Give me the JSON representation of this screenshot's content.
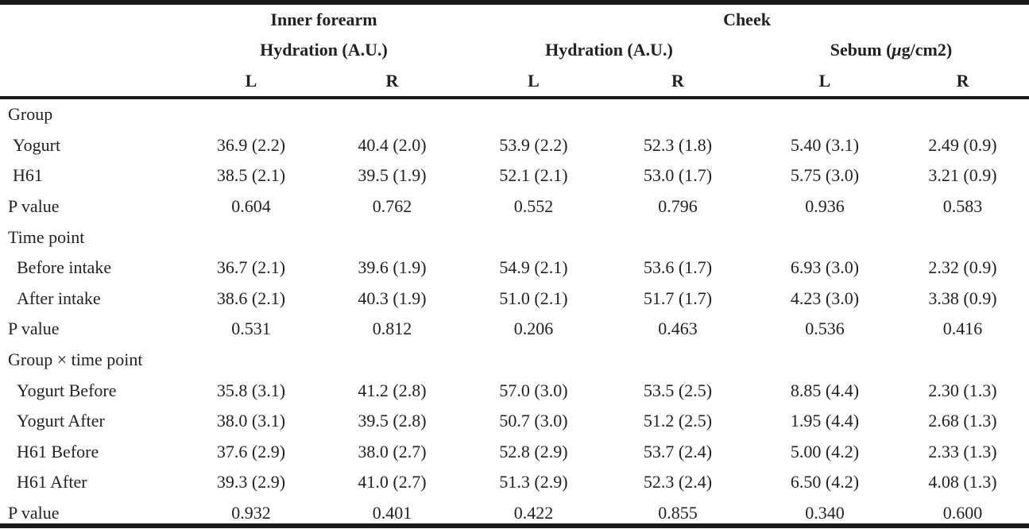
{
  "header": {
    "region1": "Inner forearm",
    "region2": "Cheek",
    "measure1": "Hydration (A.U.)",
    "measure2": "Hydration (A.U.)",
    "measure3_pre": "Sebum (",
    "measure3_mu": "μ",
    "measure3_post": "g/cm2)",
    "sides": [
      "L",
      "R",
      "L",
      "R",
      "L",
      "R"
    ]
  },
  "rows": [
    {
      "label": "Group",
      "indent": 0,
      "values": [
        "",
        "",
        "",
        "",
        "",
        ""
      ]
    },
    {
      "label": "Yogurt",
      "indent": 1,
      "values": [
        "36.9 (2.2)",
        "40.4 (2.0)",
        "53.9 (2.2)",
        "52.3 (1.8)",
        "5.40 (3.1)",
        "2.49 (0.9)"
      ]
    },
    {
      "label": "H61",
      "indent": 1,
      "values": [
        "38.5 (2.1)",
        "39.5 (1.9)",
        "52.1 (2.1)",
        "53.0 (1.7)",
        "5.75 (3.0)",
        "3.21 (0.9)"
      ]
    },
    {
      "label": "P value",
      "indent": 0,
      "values": [
        "0.604",
        "0.762",
        "0.552",
        "0.796",
        "0.936",
        "0.583"
      ]
    },
    {
      "label": "Time point",
      "indent": 0,
      "values": [
        "",
        "",
        "",
        "",
        "",
        ""
      ]
    },
    {
      "label": "Before intake",
      "indent": 2,
      "values": [
        "36.7 (2.1)",
        "39.6 (1.9)",
        "54.9 (2.1)",
        "53.6 (1.7)",
        "6.93 (3.0)",
        "2.32 (0.9)"
      ]
    },
    {
      "label": "After intake",
      "indent": 2,
      "values": [
        "38.6 (2.1)",
        "40.3 (1.9)",
        "51.0 (2.1)",
        "51.7 (1.7)",
        "4.23 (3.0)",
        "3.38 (0.9)"
      ]
    },
    {
      "label": "P value",
      "indent": 0,
      "values": [
        "0.531",
        "0.812",
        "0.206",
        "0.463",
        "0.536",
        "0.416"
      ]
    },
    {
      "label": "Group × time point",
      "indent": 0,
      "values": [
        "",
        "",
        "",
        "",
        "",
        ""
      ]
    },
    {
      "label": "Yogurt Before",
      "indent": 2,
      "values": [
        "35.8 (3.1)",
        "41.2 (2.8)",
        "57.0 (3.0)",
        "53.5 (2.5)",
        "8.85 (4.4)",
        "2.30 (1.3)"
      ]
    },
    {
      "label": "Yogurt After",
      "indent": 2,
      "values": [
        "38.0 (3.1)",
        "39.5 (2.8)",
        "50.7 (3.0)",
        "51.2 (2.5)",
        "1.95 (4.4)",
        "2.68 (1.3)"
      ]
    },
    {
      "label": "H61 Before",
      "indent": 2,
      "values": [
        "37.6 (2.9)",
        "38.0 (2.7)",
        "52.8 (2.9)",
        "53.7 (2.4)",
        "5.00 (4.2)",
        "2.33 (1.3)"
      ]
    },
    {
      "label": "H61 After",
      "indent": 2,
      "values": [
        "39.3 (2.9)",
        "41.0 (2.7)",
        "51.3 (2.9)",
        "52.3 (2.4)",
        "6.50 (4.2)",
        "4.08 (1.3)"
      ]
    },
    {
      "label": "P value",
      "indent": 0,
      "values": [
        "0.932",
        "0.401",
        "0.422",
        "0.855",
        "0.340",
        "0.600"
      ]
    }
  ]
}
